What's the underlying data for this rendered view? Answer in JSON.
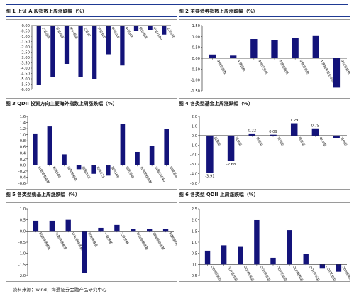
{
  "charts": [
    {
      "title": "图 1 上证 A 股指数上周涨跌幅（%）",
      "chart_data": {
        "type": "bar",
        "categories": [
          "上证综指",
          "深证成指",
          "中小板指",
          "上证50",
          "沪深300",
          "中证500",
          "中证800",
          "创业板指",
          "中证1000",
          "上证180"
        ],
        "values": [
          -5.6,
          -4.8,
          -3.6,
          -4.85,
          -5.0,
          -2.7,
          -3.75,
          -0.5,
          -0.4,
          -0.85
        ],
        "ylim": [
          -6.0,
          0.0
        ],
        "ticks": [
          0.0,
          -0.5,
          -1.0,
          -1.5,
          -2.0,
          -2.5,
          -3.0,
          -3.5,
          -4.0,
          -4.5,
          -5.0,
          -5.5,
          -6.0
        ],
        "decimals": 2,
        "bar_color": "#13137a",
        "data_labels": false
      }
    },
    {
      "title": "图 2 主要债券指数上周涨跌幅（%）",
      "chart_data": {
        "type": "bar",
        "categories": [
          "中债总指数",
          "中债国债",
          "中债企业债",
          "中债金融债",
          "中债信用债",
          "中债高收益企业债",
          "中证可转债"
        ],
        "values": [
          0.17,
          0.12,
          0.88,
          0.82,
          0.92,
          1.05,
          -1.35
        ],
        "ylim": [
          -1.5,
          1.5
        ],
        "ticks": [
          1.5,
          1.0,
          0.5,
          0.0,
          -0.5,
          -1.0,
          -1.5
        ],
        "decimals": 2,
        "bar_color": "#13137a",
        "data_labels": false
      }
    },
    {
      "title": "图 3 QDII 投资方向主要海外指数上周涨跌幅（%）",
      "chart_data": {
        "type": "bar",
        "categories": [
          "纳斯达克指数",
          "标普500",
          "道琼斯指数",
          "德国DAX",
          "日经225",
          "富时100",
          "恒生指数",
          "台湾加权指数",
          "法国CAC40",
          "印度孟买"
        ],
        "values": [
          1.04,
          1.27,
          0.35,
          -0.14,
          -0.29,
          -0.35,
          1.35,
          0.43,
          0.62,
          1.18
        ],
        "ylim": [
          -0.6,
          1.6
        ],
        "ticks": [
          1.6,
          1.4,
          1.2,
          1.0,
          0.8,
          0.6,
          0.4,
          0.2,
          0.0,
          -0.2,
          -0.4,
          -0.6
        ],
        "decimals": 1,
        "bar_color": "#13137a",
        "data_labels": false
      }
    },
    {
      "title": "图 4 各类型基金上周涨跌幅（%）",
      "chart_data": {
        "type": "bar",
        "categories": [
          "股票型",
          "混合型",
          "债券型",
          "货币型",
          "商品型",
          "QDII型",
          "其他型"
        ],
        "values": [
          -3.91,
          -2.68,
          0.22,
          0.09,
          1.29,
          0.75,
          -0.3
        ],
        "data_label_text": [
          "-3.91",
          "-2.68",
          "0.22",
          "0.09",
          "1.29",
          "0.75",
          ""
        ],
        "ylim": [
          -5.0,
          2.0
        ],
        "ticks": [
          2.0,
          1.0,
          0.0,
          -1.0,
          -2.0,
          -3.0,
          -4.0,
          -5.0
        ],
        "decimals": 1,
        "bar_color": "#13137a",
        "data_labels": true
      }
    },
    {
      "title": "图 5 各类型债基上周涨跌幅（%）",
      "chart_data": {
        "type": "bar",
        "categories": [
          "短期纯债基金",
          "长期纯债基金",
          "中长期纯债基金",
          "可转债基金",
          "一级债基",
          "二级债基",
          "被动指数债基",
          "增强指数债基",
          "短期理财债基"
        ],
        "values": [
          0.46,
          0.46,
          0.5,
          -1.88,
          0.14,
          0.27,
          0.1,
          0.1,
          0.08
        ],
        "ylim": [
          -2.0,
          1.0
        ],
        "ticks": [
          1.0,
          0.5,
          0.0,
          -0.5,
          -1.0,
          -1.5,
          -2.0
        ],
        "decimals": 1,
        "bar_color": "#13137a",
        "data_labels": false
      }
    },
    {
      "title": "图 6 各类型 QDII 上周涨跌幅（%）",
      "chart_data": {
        "type": "bar",
        "categories": [
          "QDII股票型",
          "QDII混合型",
          "QDII债券型",
          "QDII商品型",
          "QDII另类投资",
          "QDII指数型",
          "QDII货币型",
          "QDII其他型",
          "QDII股票指数"
        ],
        "values": [
          0.62,
          0.86,
          0.79,
          1.99,
          0.3,
          1.54,
          0.46,
          -0.19,
          -0.33
        ],
        "ylim": [
          -0.5,
          2.5
        ],
        "ticks": [
          2.5,
          2.0,
          1.5,
          1.0,
          0.5,
          0.0,
          -0.5
        ],
        "decimals": 1,
        "bar_color": "#13137a",
        "data_labels": false
      }
    }
  ],
  "source": "资料来源：wind，海通证券金融产品研究中心"
}
